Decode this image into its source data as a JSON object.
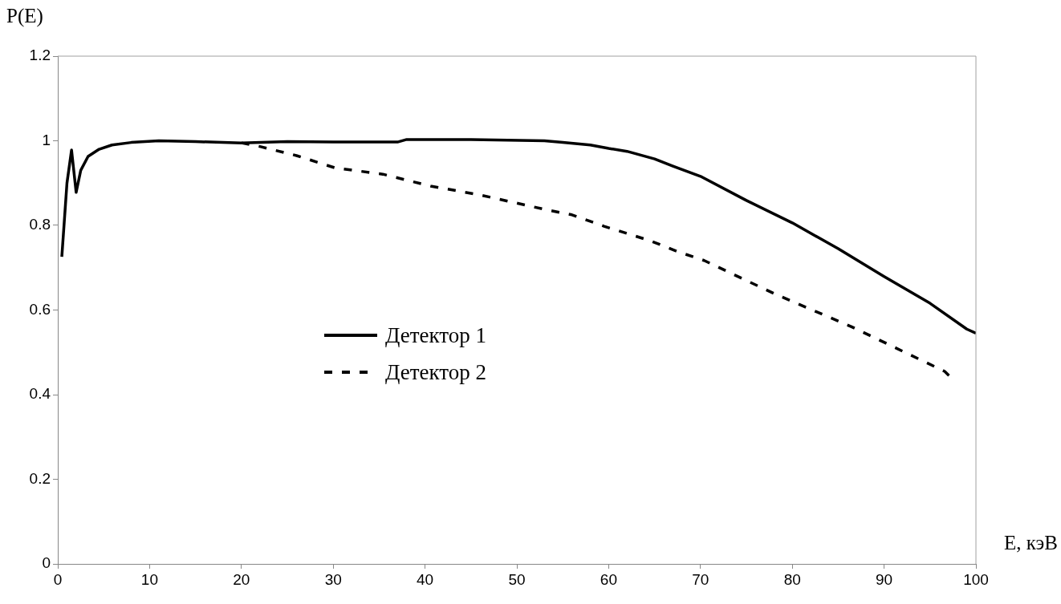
{
  "chart_data": {
    "type": "line",
    "xlabel": "E, кэВ",
    "ylabel": "P(E)",
    "xlim": [
      0,
      100
    ],
    "ylim": [
      0,
      1.2
    ],
    "xticks": [
      0,
      10,
      20,
      30,
      40,
      50,
      60,
      70,
      80,
      90,
      100
    ],
    "yticks": [
      0,
      0.2,
      0.4,
      0.6,
      0.8,
      1,
      1.2
    ],
    "grid": false,
    "legend": "left",
    "marker": "none",
    "series": [
      {
        "name": "Детектор 1",
        "color": "#000000",
        "line_style": "solid",
        "x": [
          0.44,
          1.0,
          1.5,
          2.0,
          2.5,
          3.3,
          4.5,
          5.9,
          8,
          11,
          15,
          20,
          25,
          30,
          37,
          38,
          45,
          53,
          55,
          58,
          60,
          62,
          65,
          67,
          70,
          75,
          80,
          85,
          90,
          95,
          99,
          100
        ],
        "values": [
          0.726,
          0.9,
          0.978,
          0.878,
          0.93,
          0.963,
          0.98,
          0.99,
          0.996,
          1.0,
          0.998,
          0.995,
          0.998,
          0.997,
          0.997,
          1.003,
          1.003,
          1.0,
          0.996,
          0.99,
          0.982,
          0.975,
          0.957,
          0.94,
          0.916,
          0.859,
          0.806,
          0.745,
          0.679,
          0.616,
          0.555,
          0.545
        ]
      },
      {
        "name": "Детектор 2",
        "color": "#000000",
        "line_style": "dashed",
        "x": [
          20,
          22.1,
          26,
          30.2,
          35.4,
          40.6,
          46,
          53.4,
          56,
          59.5,
          64.5,
          67.4,
          70.4,
          78.2,
          86.4,
          94,
          96.6,
          97.3
        ],
        "values": [
          0.995,
          0.986,
          0.965,
          0.936,
          0.921,
          0.893,
          0.872,
          0.836,
          0.825,
          0.798,
          0.764,
          0.739,
          0.717,
          0.637,
          0.561,
          0.482,
          0.455,
          0.44
        ]
      }
    ]
  }
}
